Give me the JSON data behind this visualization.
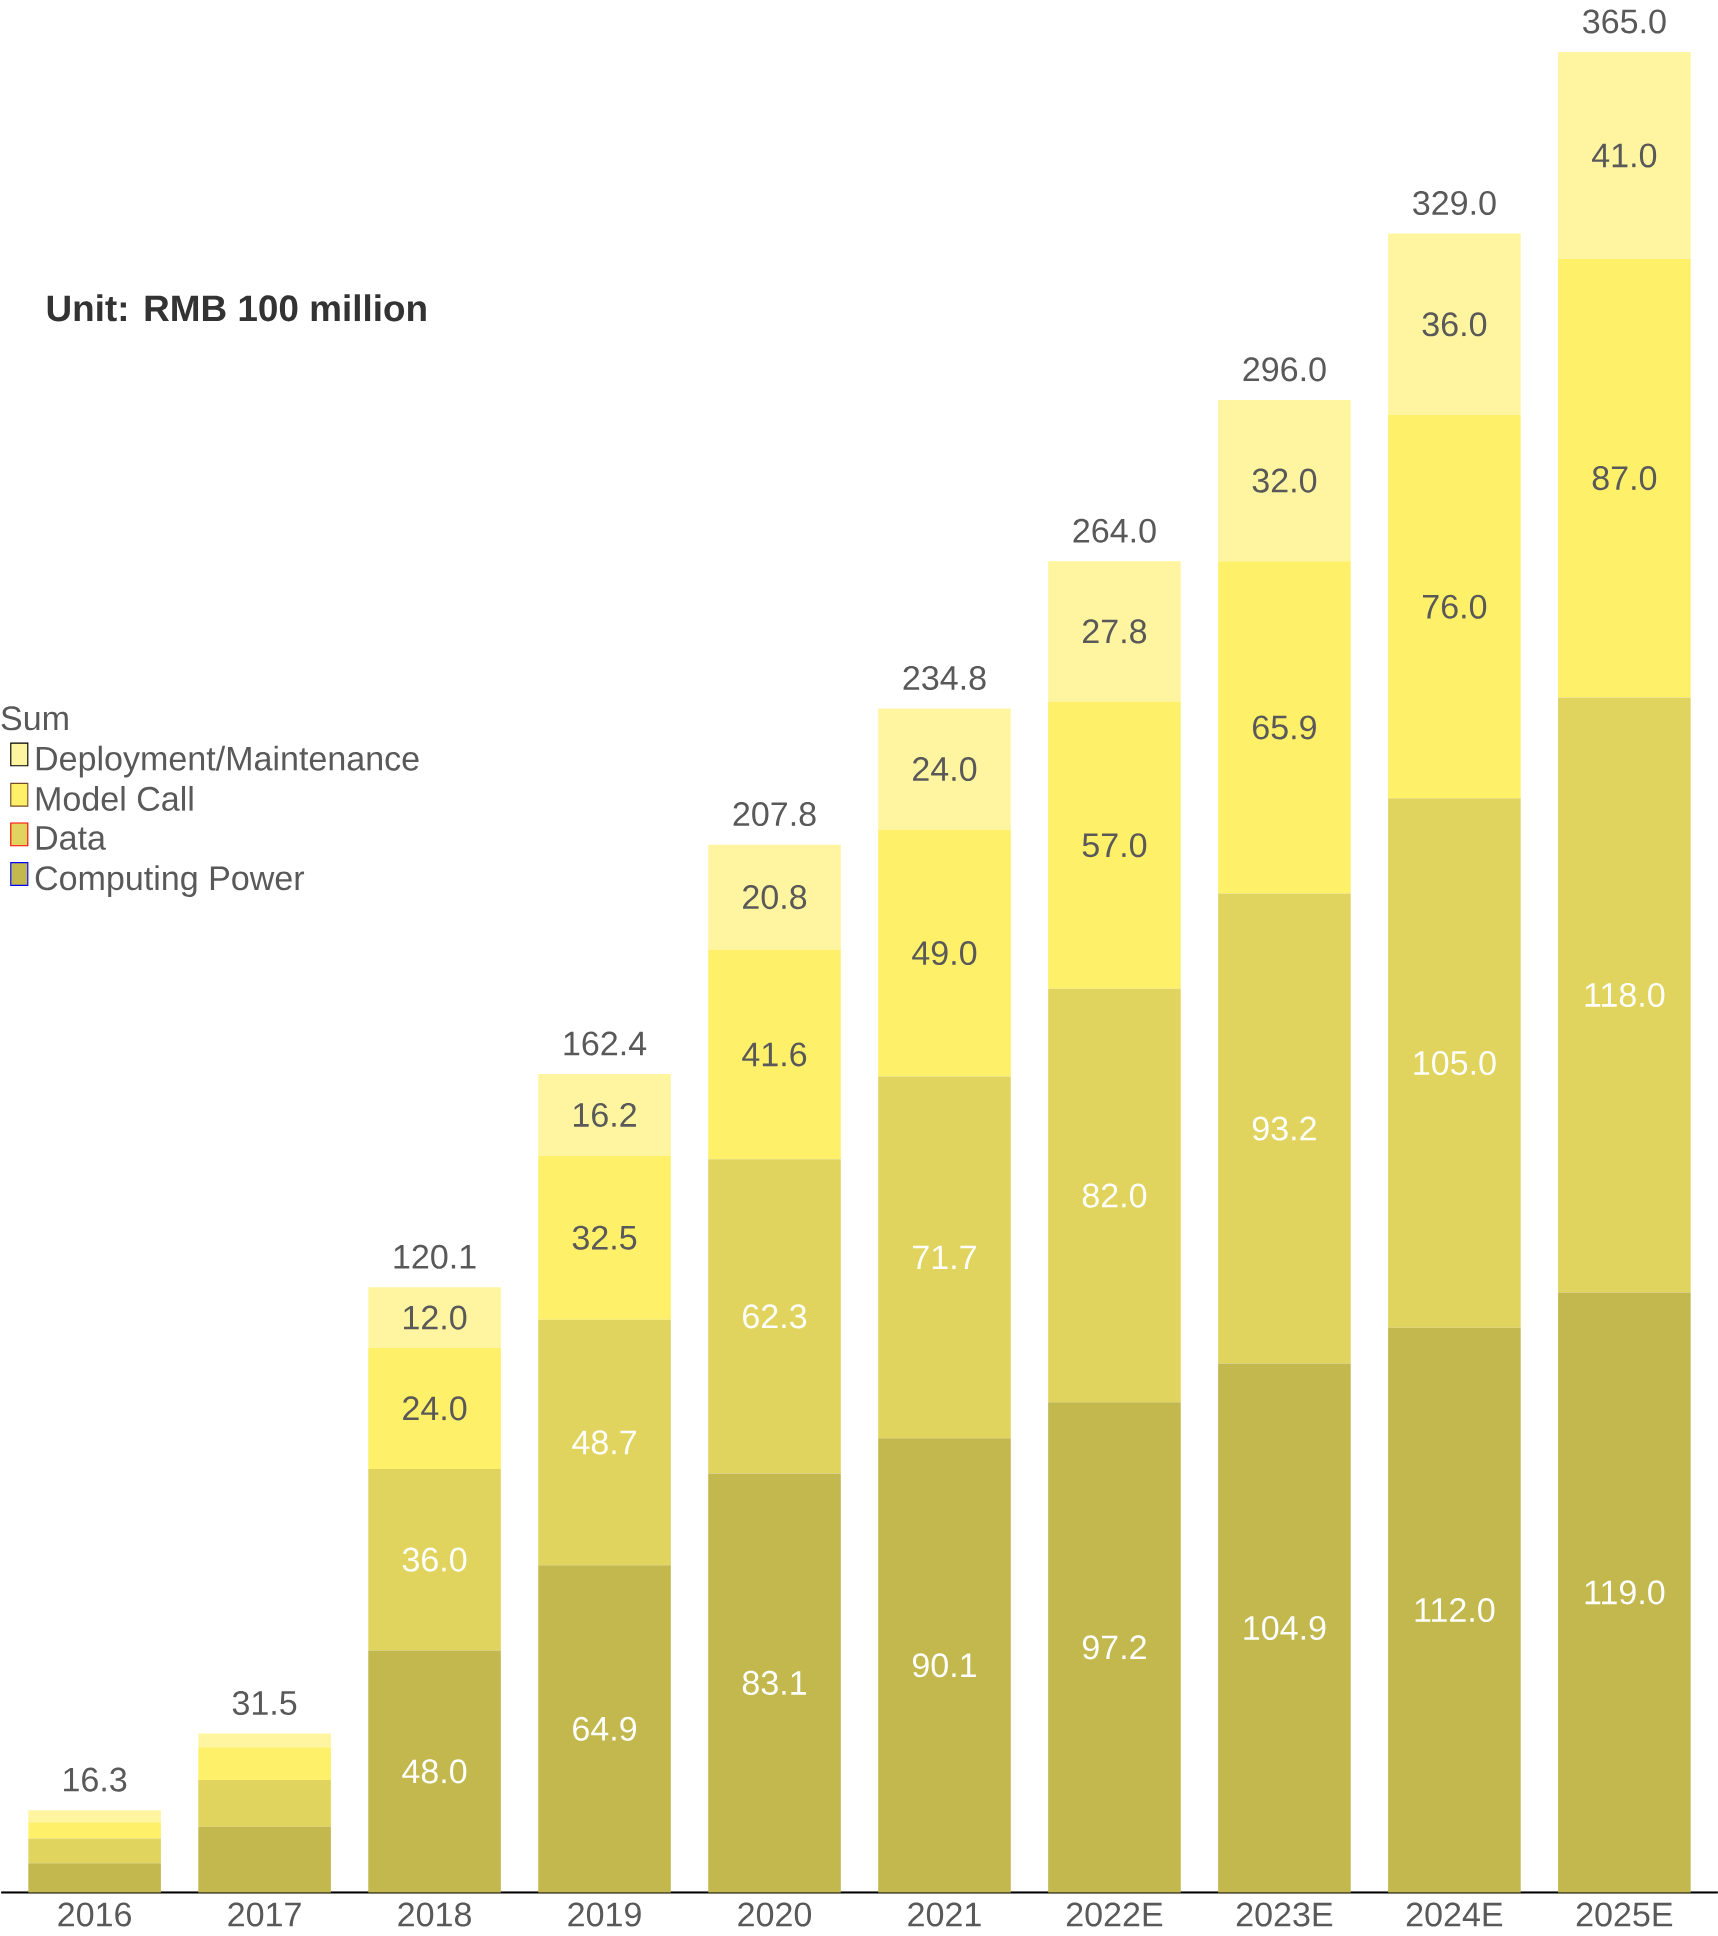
{
  "chart_data": {
    "type": "bar",
    "stacked": true,
    "annotations": [
      "Unit: RMB 100 million"
    ],
    "categories": [
      "2016",
      "2017",
      "2018",
      "2019",
      "2020",
      "2021",
      "2022E",
      "2023E",
      "2024E",
      "2025E"
    ],
    "series": [
      {
        "name": "Computing Power",
        "color": "#c2b84e",
        "values": [
          5.8,
          13,
          48,
          64.9,
          83.1,
          90.1,
          97.2,
          104.9,
          112,
          119
        ],
        "value_labels": [
          null,
          null,
          "48.0",
          "64.9",
          "83.1",
          "90.1",
          "97.2",
          "104.9",
          "112.0",
          "119.0"
        ]
      },
      {
        "name": "Data",
        "color": "#e0d45e",
        "values": [
          4.9,
          9.3,
          36,
          48.7,
          62.3,
          71.7,
          82,
          93.2,
          105,
          118
        ],
        "value_labels": [
          null,
          null,
          "36.0",
          "48.7",
          "62.3",
          "71.7",
          "82.0",
          "93.2",
          "105.0",
          "118.0"
        ]
      },
      {
        "name": "Model Call",
        "color": "#fff06a",
        "values": [
          3.2,
          6.5,
          24,
          32.5,
          41.6,
          49,
          57,
          65.9,
          76,
          87
        ],
        "value_labels": [
          null,
          null,
          "24.0",
          "32.5",
          "41.6",
          "49.0",
          "57.0",
          "65.9",
          "76.0",
          "87.0"
        ]
      },
      {
        "name": "Deployment/Maintenance",
        "color": "#fff5a0",
        "values": [
          2.4,
          2.7,
          12,
          16.2,
          20.8,
          24,
          27.8,
          32,
          36,
          41
        ],
        "value_labels": [
          null,
          null,
          "12.0",
          "16.2",
          "20.8",
          "24.0",
          "27.8",
          "32.0",
          "36.0",
          "41.0"
        ]
      }
    ],
    "totals": [
      "16.3",
      "31.5",
      "120.1",
      "162.4",
      "207.8",
      "234.8",
      "264.0",
      "296.0",
      "329.0",
      "365.0"
    ],
    "legend": "left",
    "legend_title": "Sum"
  }
}
